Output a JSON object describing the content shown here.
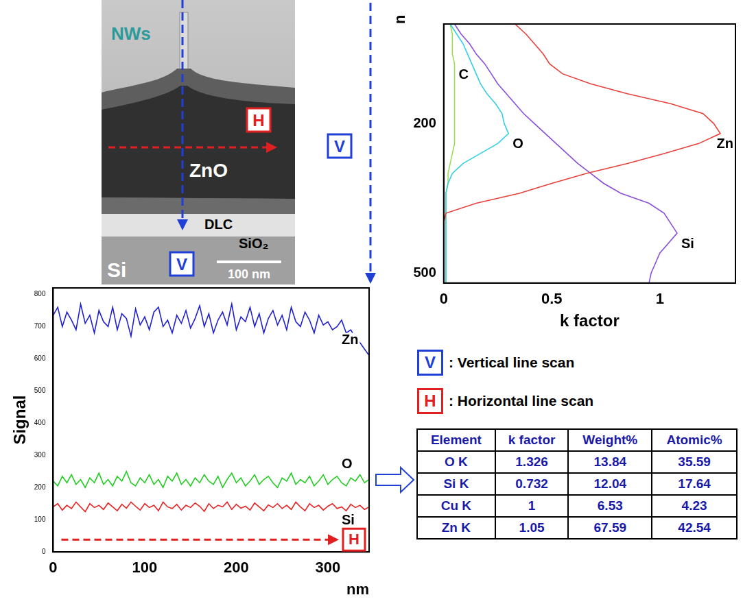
{
  "image": {
    "nws": "NWs",
    "h": "H",
    "zno": "ZnO",
    "dlc": "DLC",
    "sio2": "SiO₂",
    "si": "Si",
    "v": "V",
    "scale_bar": "100 nm"
  },
  "chart_data": [
    {
      "type": "line",
      "orientation": "horizontal",
      "annotations": [
        "V"
      ],
      "xlabel": "k factor",
      "ylabel": "nm",
      "xlim": [
        0,
        1.35
      ],
      "xticks": [
        0,
        0.5,
        1
      ],
      "ylim": [
        520,
        0
      ],
      "yticks": [
        200,
        500
      ],
      "grid": false,
      "y": [
        0,
        20,
        40,
        60,
        80,
        100,
        120,
        140,
        160,
        180,
        200,
        220,
        240,
        260,
        280,
        300,
        320,
        340,
        360,
        380,
        400,
        420,
        440,
        460,
        480,
        500,
        520
      ],
      "series": [
        {
          "name": "Zn",
          "color": "#e8403a",
          "values": [
            0.33,
            0.38,
            0.42,
            0.46,
            0.49,
            0.55,
            0.68,
            0.85,
            1.05,
            1.2,
            1.25,
            1.28,
            1.18,
            1.02,
            0.85,
            0.66,
            0.5,
            0.35,
            0.15,
            0.01,
            0,
            0,
            0,
            0,
            0,
            0,
            0
          ]
        },
        {
          "name": "O",
          "color": "#33cfe6",
          "values": [
            0.03,
            0.06,
            0.09,
            0.11,
            0.13,
            0.15,
            0.17,
            0.2,
            0.24,
            0.27,
            0.28,
            0.3,
            0.25,
            0.17,
            0.09,
            0.04,
            0.02,
            0.01,
            0.01,
            0.01,
            0.01,
            0.01,
            0.01,
            0.01,
            0.01,
            0.01,
            0.01
          ]
        },
        {
          "name": "C",
          "color": "#99dd55",
          "values": [
            0.03,
            0.04,
            0.04,
            0.04,
            0.05,
            0.05,
            0.05,
            0.05,
            0.05,
            0.05,
            0.05,
            0.05,
            0.05,
            0.04,
            0.03,
            0.02,
            0.02,
            0.01,
            0.01,
            0.01,
            0.01,
            0.01,
            0.01,
            0.01,
            0.01,
            0.01,
            0.01
          ]
        },
        {
          "name": "Si",
          "color": "#8a4fd8",
          "values": [
            0.05,
            0.08,
            0.12,
            0.15,
            0.19,
            0.22,
            0.25,
            0.29,
            0.33,
            0.37,
            0.42,
            0.47,
            0.52,
            0.57,
            0.62,
            0.68,
            0.74,
            0.82,
            0.95,
            1.02,
            1.05,
            1.08,
            1.04,
            1.0,
            0.98,
            0.96,
            0.95
          ]
        }
      ]
    },
    {
      "type": "line",
      "annotations": [
        "H"
      ],
      "xlabel": "nm",
      "ylabel": "Signal",
      "xlim": [
        0,
        345
      ],
      "xticks": [
        0,
        100,
        200,
        300
      ],
      "ylim": [
        0,
        820
      ],
      "yticks": [
        0,
        100,
        200,
        300,
        400,
        500,
        600,
        700,
        800
      ],
      "grid": false,
      "x": [
        0,
        5,
        10,
        15,
        20,
        25,
        30,
        35,
        40,
        45,
        50,
        55,
        60,
        65,
        70,
        75,
        80,
        85,
        90,
        95,
        100,
        105,
        110,
        115,
        120,
        125,
        130,
        135,
        140,
        145,
        150,
        155,
        160,
        165,
        170,
        175,
        180,
        185,
        190,
        195,
        200,
        205,
        210,
        215,
        220,
        225,
        230,
        235,
        240,
        245,
        250,
        255,
        260,
        265,
        270,
        275,
        280,
        285,
        290,
        295,
        300,
        305,
        310,
        315,
        320,
        325,
        330,
        335,
        340,
        345
      ],
      "series": [
        {
          "name": "Zn",
          "color": "#2020d0",
          "values": [
            735,
            760,
            700,
            745,
            720,
            690,
            770,
            710,
            735,
            680,
            750,
            715,
            700,
            760,
            690,
            740,
            725,
            670,
            755,
            705,
            730,
            690,
            745,
            760,
            700,
            720,
            680,
            735,
            710,
            750,
            695,
            725,
            765,
            700,
            740,
            680,
            720,
            745,
            705,
            770,
            690,
            730,
            715,
            760,
            700,
            740,
            680,
            725,
            750,
            705,
            735,
            690,
            760,
            715,
            700,
            745,
            720,
            680,
            735,
            705,
            715,
            690,
            700,
            720,
            680,
            690,
            665,
            650,
            630,
            610
          ]
        },
        {
          "name": "O",
          "color": "#22cc22",
          "values": [
            220,
            205,
            235,
            215,
            240,
            210,
            225,
            200,
            230,
            215,
            245,
            210,
            225,
            205,
            235,
            220,
            250,
            215,
            205,
            230,
            215,
            240,
            210,
            225,
            200,
            235,
            220,
            245,
            210,
            225,
            205,
            230,
            215,
            240,
            220,
            210,
            235,
            200,
            225,
            245,
            215,
            230,
            205,
            220,
            240,
            210,
            225,
            235,
            215,
            200,
            230,
            220,
            245,
            210,
            225,
            215,
            235,
            205,
            220,
            240,
            210,
            225,
            235,
            215,
            205,
            230,
            220,
            240,
            215,
            225
          ]
        },
        {
          "name": "Si",
          "color": "#e82020",
          "values": [
            140,
            150,
            130,
            145,
            135,
            155,
            140,
            125,
            150,
            138,
            145,
            132,
            152,
            140,
            128,
            148,
            136,
            155,
            142,
            130,
            150,
            138,
            145,
            128,
            155,
            140,
            135,
            148,
            130,
            145,
            138,
            152,
            142,
            126,
            150,
            135,
            145,
            140,
            155,
            132,
            148,
            136,
            142,
            130,
            152,
            140,
            128,
            146,
            138,
            150,
            135,
            145,
            132,
            155,
            140,
            128,
            150,
            138,
            145,
            130,
            142,
            150,
            135,
            140,
            128,
            148,
            138,
            145,
            132,
            140
          ]
        }
      ]
    }
  ],
  "scan_key": [
    {
      "mark": "V",
      "text": ": Vertical line scan",
      "color": "#1f3fd6"
    },
    {
      "mark": "H",
      "text": ": Horizontal line scan",
      "color": "#e02020"
    }
  ],
  "table": {
    "columns": [
      "Element",
      "k factor",
      "Weight%",
      "Atomic%"
    ],
    "rows": [
      [
        "O K",
        1.326,
        13.84,
        35.59
      ],
      [
        "Si K",
        0.732,
        12.04,
        17.64
      ],
      [
        "Cu K",
        1,
        6.53,
        4.23
      ],
      [
        "Zn K",
        1.05,
        67.59,
        42.54
      ]
    ]
  }
}
